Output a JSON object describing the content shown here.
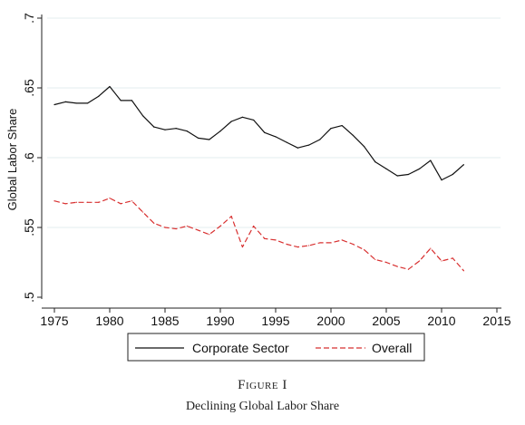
{
  "figure_label": "Figure I",
  "figure_title": "Declining Global Labor Share",
  "chart_data": {
    "type": "line",
    "title": "",
    "xlabel": "",
    "ylabel": "Global Labor Share",
    "xlim": [
      1975,
      2015
    ],
    "ylim": [
      0.5,
      0.7
    ],
    "x_ticks": [
      1975,
      1980,
      1985,
      1990,
      1995,
      2000,
      2005,
      2010,
      2015
    ],
    "y_ticks": [
      0.5,
      0.55,
      0.6,
      0.65,
      0.7
    ],
    "y_tick_labels": [
      ".5",
      ".55",
      ".6",
      ".65",
      ".7"
    ],
    "grid": "horizontal",
    "legend_position": "bottom",
    "series": [
      {
        "name": "Corporate Sector",
        "color": "#111111",
        "dash": "solid",
        "x": [
          1975,
          1976,
          1977,
          1978,
          1979,
          1980,
          1981,
          1982,
          1983,
          1984,
          1985,
          1986,
          1987,
          1988,
          1989,
          1990,
          1991,
          1992,
          1993,
          1994,
          1995,
          1996,
          1997,
          1998,
          1999,
          2000,
          2001,
          2002,
          2003,
          2004,
          2005,
          2006,
          2007,
          2008,
          2009,
          2010,
          2011,
          2012
        ],
        "values": [
          0.638,
          0.64,
          0.639,
          0.639,
          0.644,
          0.651,
          0.641,
          0.641,
          0.63,
          0.622,
          0.62,
          0.621,
          0.619,
          0.614,
          0.613,
          0.619,
          0.626,
          0.629,
          0.627,
          0.618,
          0.615,
          0.611,
          0.607,
          0.609,
          0.613,
          0.621,
          0.623,
          0.616,
          0.608,
          0.597,
          0.592,
          0.587,
          0.588,
          0.592,
          0.598,
          0.584,
          0.588,
          0.595
        ]
      },
      {
        "name": "Overall",
        "color": "#d83030",
        "dash": "dashed",
        "x": [
          1975,
          1976,
          1977,
          1978,
          1979,
          1980,
          1981,
          1982,
          1983,
          1984,
          1985,
          1986,
          1987,
          1988,
          1989,
          1990,
          1991,
          1992,
          1993,
          1994,
          1995,
          1996,
          1997,
          1998,
          1999,
          2000,
          2001,
          2002,
          2003,
          2004,
          2005,
          2006,
          2007,
          2008,
          2009,
          2010,
          2011,
          2012
        ],
        "values": [
          0.569,
          0.567,
          0.568,
          0.568,
          0.568,
          0.571,
          0.567,
          0.569,
          0.561,
          0.553,
          0.55,
          0.549,
          0.551,
          0.548,
          0.545,
          0.551,
          0.558,
          0.536,
          0.551,
          0.542,
          0.541,
          0.538,
          0.536,
          0.537,
          0.539,
          0.539,
          0.541,
          0.538,
          0.534,
          0.527,
          0.525,
          0.522,
          0.52,
          0.526,
          0.535,
          0.526,
          0.528,
          0.519
        ]
      }
    ]
  }
}
